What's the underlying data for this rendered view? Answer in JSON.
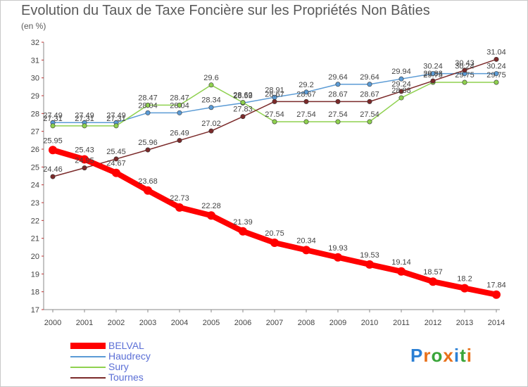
{
  "title": "Evolution du Taux de Taxe Foncière sur les Propriétés Non Bâties",
  "unit_label": "(en %)",
  "chart_data": {
    "type": "line",
    "title": "Evolution du Taux de Taxe Foncière sur les Propriétés Non Bâties",
    "ylabel": "(en %)",
    "xlabel": "",
    "x": [
      "2000",
      "2001",
      "2002",
      "2003",
      "2004",
      "2005",
      "2006",
      "2007",
      "2008",
      "2009",
      "2010",
      "2011",
      "2012",
      "2013",
      "2014"
    ],
    "ylim": [
      17,
      32
    ],
    "yticks": [
      "17",
      "18",
      "19",
      "20",
      "21",
      "22",
      "23",
      "24",
      "25",
      "26",
      "27",
      "28",
      "29",
      "30",
      "31",
      "32"
    ],
    "grid": false,
    "legend_position": "bottom-left",
    "series": [
      {
        "name": "BELVAL",
        "color": "#ff0000",
        "values": [
          25.95,
          25.43,
          24.67,
          23.68,
          22.73,
          22.28,
          21.39,
          20.75,
          20.34,
          19.93,
          19.53,
          19.14,
          18.57,
          18.2,
          17.84
        ],
        "labels": [
          "25.95",
          "25.43",
          "24.67",
          "23.68",
          "22.73",
          "22.28",
          "21.39",
          "20.75",
          "20.34",
          "19.93",
          "19.53",
          "19.14",
          "18.57",
          "18.2",
          "17.84"
        ]
      },
      {
        "name": "Haudrecy",
        "color": "#5b9bd5",
        "values": [
          27.49,
          27.49,
          27.49,
          28.04,
          28.04,
          28.34,
          28.59,
          28.91,
          29.2,
          29.64,
          29.64,
          29.94,
          30.24,
          30.24,
          30.24
        ],
        "labels": [
          "27.49",
          "27.49",
          "27.49",
          "28.04",
          "28.04",
          "28.34",
          "28.59",
          "28.91",
          "29.2",
          "29.64",
          "29.64",
          "29.94",
          "30.24",
          "30.24",
          "30.24"
        ]
      },
      {
        "name": "Sury",
        "color": "#8fd14f",
        "values": [
          27.31,
          27.31,
          27.31,
          28.47,
          28.47,
          29.6,
          28.62,
          27.54,
          27.54,
          27.54,
          27.54,
          28.88,
          29.75,
          29.75,
          29.75
        ],
        "labels": [
          "27.31",
          "27.31",
          "27.31",
          "28.47",
          "28.47",
          "29.6",
          "28.62",
          "27.54",
          "27.54",
          "27.54",
          "27.54",
          "28.88",
          "29.75",
          "29.75",
          "29.75"
        ]
      },
      {
        "name": "Tournes",
        "color": "#7b2a2a",
        "values": [
          24.46,
          24.95,
          25.45,
          25.96,
          26.49,
          27.02,
          27.83,
          28.67,
          28.67,
          28.67,
          28.67,
          29.24,
          29.83,
          30.43,
          31.04
        ],
        "labels": [
          "24.46",
          "24.95",
          "25.45",
          "25.96",
          "26.49",
          "27.02",
          "27.83",
          "28.67",
          "28.67",
          "28.67",
          "28.67",
          "29.24",
          "29.83",
          "30.43",
          "31.04"
        ]
      }
    ]
  },
  "legend": [
    {
      "label": "BELVAL",
      "color": "#ff0000"
    },
    {
      "label": "Haudrecy",
      "color": "#5b9bd5"
    },
    {
      "label": "Sury",
      "color": "#8fd14f"
    },
    {
      "label": "Tournes",
      "color": "#7b2a2a"
    }
  ],
  "logo": {
    "text": "Proxiti",
    "letters": [
      "P",
      "r",
      "o",
      "x",
      "i",
      "t",
      "i"
    ],
    "colors": [
      "#2a7fd4",
      "#e8701a",
      "#3aa53a",
      "#e8701a",
      "#2a7fd4",
      "#3aa53a",
      "#e8701a"
    ]
  }
}
